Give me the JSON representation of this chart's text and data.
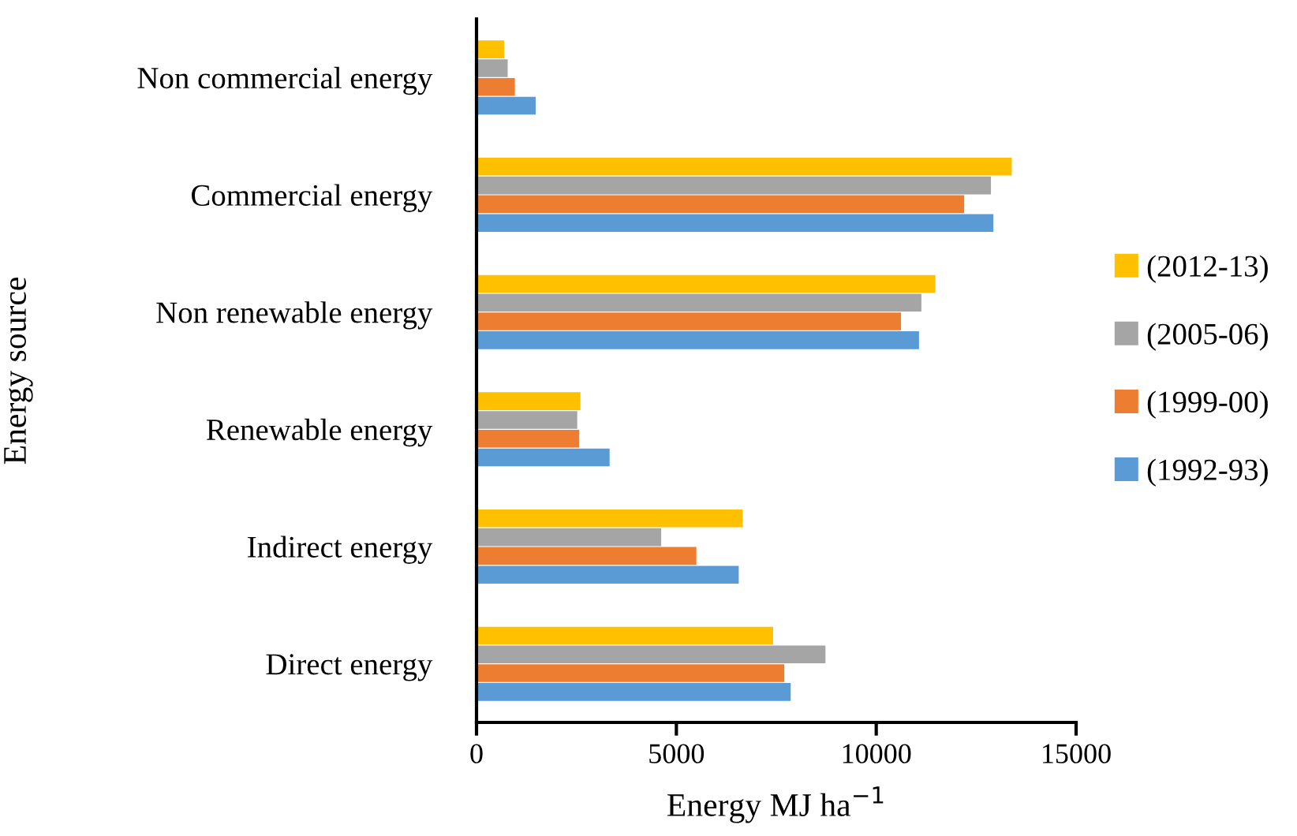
{
  "chart_data": {
    "type": "bar",
    "orientation": "horizontal",
    "xlabel": "Energy MJ ha$^{−1}$",
    "ylabel": "Energy source",
    "categories": [
      "Non commercial energy",
      "Commercial energy",
      "Non renewable energy",
      "Renewable energy",
      "Indirect energy",
      "Direct energy"
    ],
    "series": [
      {
        "name": "(1992-93)",
        "color": "#5b9bd5",
        "values": [
          1480,
          12930,
          11070,
          3330,
          6560,
          7860
        ]
      },
      {
        "name": "(1999-00)",
        "color": "#ed7d31",
        "values": [
          960,
          12200,
          10620,
          2570,
          5500,
          7700
        ]
      },
      {
        "name": "(2005-06)",
        "color": "#a5a5a5",
        "values": [
          780,
          12870,
          11130,
          2520,
          4620,
          8730
        ]
      },
      {
        "name": "(2012-13)",
        "color": "#ffc000",
        "values": [
          690,
          13390,
          11480,
          2600,
          6660,
          7420
        ]
      }
    ],
    "xlim": [
      0,
      15000
    ],
    "xticks": [
      0,
      5000,
      10000,
      15000
    ],
    "grid": false,
    "legend": "right"
  }
}
